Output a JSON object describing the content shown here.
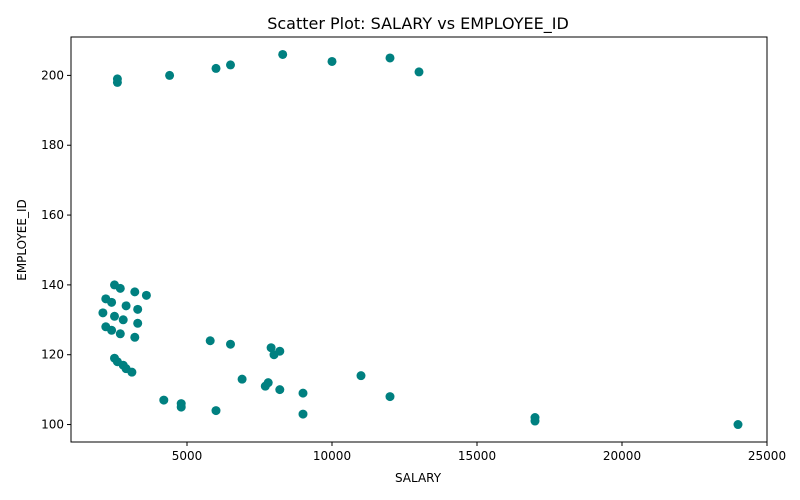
{
  "colors": {
    "marker": "#008080",
    "axis": "#000000",
    "background": "#ffffff"
  },
  "chart_data": {
    "type": "scatter",
    "title": "Scatter Plot: SALARY vs EMPLOYEE_ID",
    "xlabel": "SALARY",
    "ylabel": "EMPLOYEE_ID",
    "xlim": [
      1000,
      25000
    ],
    "ylim": [
      95,
      211
    ],
    "xticks": [
      5000,
      10000,
      15000,
      20000,
      25000
    ],
    "yticks": [
      100,
      120,
      140,
      160,
      180,
      200
    ],
    "grid": false,
    "points": [
      {
        "x": 24000,
        "y": 100
      },
      {
        "x": 17000,
        "y": 101
      },
      {
        "x": 17000,
        "y": 102
      },
      {
        "x": 9000,
        "y": 103
      },
      {
        "x": 6000,
        "y": 104
      },
      {
        "x": 4800,
        "y": 105
      },
      {
        "x": 4800,
        "y": 106
      },
      {
        "x": 4200,
        "y": 107
      },
      {
        "x": 12000,
        "y": 108
      },
      {
        "x": 9000,
        "y": 109
      },
      {
        "x": 8200,
        "y": 110
      },
      {
        "x": 7700,
        "y": 111
      },
      {
        "x": 7800,
        "y": 112
      },
      {
        "x": 6900,
        "y": 113
      },
      {
        "x": 11000,
        "y": 114
      },
      {
        "x": 3100,
        "y": 115
      },
      {
        "x": 2900,
        "y": 116
      },
      {
        "x": 2800,
        "y": 117
      },
      {
        "x": 2600,
        "y": 118
      },
      {
        "x": 2500,
        "y": 119
      },
      {
        "x": 8000,
        "y": 120
      },
      {
        "x": 8200,
        "y": 121
      },
      {
        "x": 7900,
        "y": 122
      },
      {
        "x": 6500,
        "y": 123
      },
      {
        "x": 5800,
        "y": 124
      },
      {
        "x": 3200,
        "y": 125
      },
      {
        "x": 2700,
        "y": 126
      },
      {
        "x": 2400,
        "y": 127
      },
      {
        "x": 2200,
        "y": 128
      },
      {
        "x": 3300,
        "y": 129
      },
      {
        "x": 2800,
        "y": 130
      },
      {
        "x": 2500,
        "y": 131
      },
      {
        "x": 2100,
        "y": 132
      },
      {
        "x": 3300,
        "y": 133
      },
      {
        "x": 2900,
        "y": 134
      },
      {
        "x": 2400,
        "y": 135
      },
      {
        "x": 2200,
        "y": 136
      },
      {
        "x": 3600,
        "y": 137
      },
      {
        "x": 3200,
        "y": 138
      },
      {
        "x": 2700,
        "y": 139
      },
      {
        "x": 2500,
        "y": 140
      },
      {
        "x": 2600,
        "y": 198
      },
      {
        "x": 2600,
        "y": 199
      },
      {
        "x": 4400,
        "y": 200
      },
      {
        "x": 13000,
        "y": 201
      },
      {
        "x": 6000,
        "y": 202
      },
      {
        "x": 6500,
        "y": 203
      },
      {
        "x": 10000,
        "y": 204
      },
      {
        "x": 12000,
        "y": 205
      },
      {
        "x": 8300,
        "y": 206
      }
    ]
  }
}
